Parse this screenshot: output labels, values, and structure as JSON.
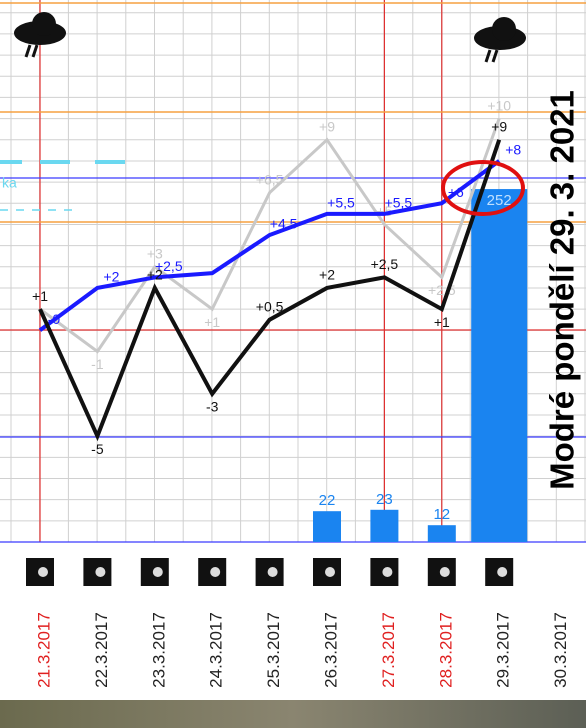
{
  "chart_data": {
    "type": "line",
    "title": "Modré pondělí 29. 3. 2021",
    "annotation": "ka",
    "categories": [
      "21.3.2017",
      "22.3.2017",
      "23.3.2017",
      "24.3.2017",
      "25.3.2017",
      "26.3.2017",
      "27.3.2017",
      "28.3.2017",
      "29.3.2017",
      "30.3.2017"
    ],
    "category_colors": [
      "#e02020",
      "#222222",
      "#222222",
      "#222222",
      "#222222",
      "#222222",
      "#e02020",
      "#e02020",
      "#222222",
      "#222222"
    ],
    "ylim": [
      -10,
      15.6
    ],
    "y2lim": [
      0,
      387
    ],
    "series": [
      {
        "color": "#c8c8c8",
        "values": [
          1,
          -1,
          3,
          1,
          6.5,
          9,
          5,
          2.5,
          10,
          null
        ],
        "value_labels": [
          null,
          "-1",
          "+3",
          "+1",
          "+6,5",
          "+9",
          "+5",
          "+2,5",
          "+10",
          null
        ]
      },
      {
        "color": "#1a1aff",
        "values": [
          0,
          2,
          2.5,
          2.7,
          4.5,
          5.5,
          5.5,
          6,
          8,
          null
        ],
        "value_labels": [
          "-0",
          "+2",
          "+2,5",
          null,
          "+4,5",
          "+5,5",
          "+5,5",
          "+6",
          "+8",
          null
        ]
      },
      {
        "color": "#111111",
        "values": [
          1,
          -5,
          2,
          -3,
          0.5,
          2,
          2.5,
          1,
          9,
          null
        ],
        "value_labels": [
          "+1",
          "-5",
          "+2",
          "-3",
          "+0,5",
          "+2",
          "+2,5",
          "+1",
          "+9",
          null
        ]
      }
    ],
    "bars": {
      "color": "#1a84f0",
      "axis": "y2",
      "values": [
        null,
        null,
        null,
        null,
        null,
        22,
        23,
        12,
        252,
        null
      ]
    }
  }
}
